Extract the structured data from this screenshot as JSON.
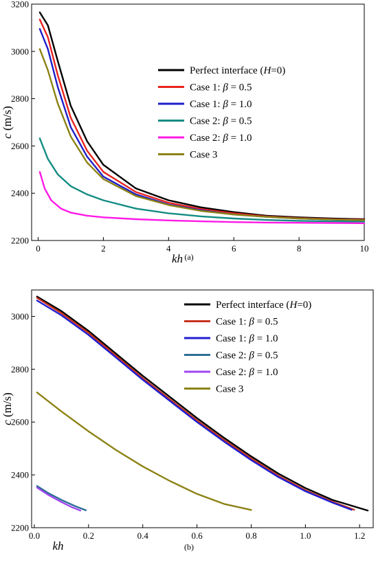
{
  "chart_data": [
    {
      "type": "line",
      "panel_label": "(a)",
      "xlabel": "kh",
      "ylabel": "c (m/s)",
      "xlim": [
        -0.2,
        10
      ],
      "ylim": [
        2200,
        3200
      ],
      "xticks": [
        "0",
        "2",
        "4",
        "6",
        "8",
        "10"
      ],
      "xtick_values": [
        0,
        2,
        4,
        6,
        8,
        10
      ],
      "yticks": [
        "2200",
        "2400",
        "2600",
        "2800",
        "3000",
        "3200"
      ],
      "ytick_values": [
        2200,
        2400,
        2600,
        2800,
        3000,
        3200
      ],
      "grid": false,
      "legend": "upper-right",
      "series": [
        {
          "name": "Perfect interface (H=0)",
          "label_main": "Perfect interface (",
          "label_var": "H",
          "label_end": "=0)",
          "color": "#000000",
          "x": [
            0.05,
            0.3,
            0.6,
            1.0,
            1.5,
            2.0,
            3.0,
            4.0,
            5.0,
            6.0,
            7.0,
            8.0,
            9.0,
            10.0
          ],
          "y": [
            3165,
            3110,
            2960,
            2770,
            2620,
            2520,
            2420,
            2370,
            2340,
            2320,
            2305,
            2298,
            2293,
            2290
          ]
        },
        {
          "name": "Case 1: β = 0.5",
          "label_main": "Case 1: ",
          "label_var": "β",
          "label_end": " = 0.5",
          "color": "#e8231e",
          "x": [
            0.05,
            0.3,
            0.6,
            1.0,
            1.5,
            2.0,
            3.0,
            4.0,
            5.0,
            6.0,
            7.0,
            8.0,
            9.0,
            10.0
          ],
          "y": [
            3135,
            3060,
            2900,
            2720,
            2580,
            2490,
            2405,
            2360,
            2333,
            2315,
            2302,
            2295,
            2290,
            2288
          ]
        },
        {
          "name": "Case 1: β = 1.0",
          "label_main": "Case 1: ",
          "label_var": "β",
          "label_end": " = 1.0",
          "color": "#1e1ec8",
          "x": [
            0.05,
            0.3,
            0.6,
            1.0,
            1.5,
            2.0,
            3.0,
            4.0,
            5.0,
            6.0,
            7.0,
            8.0,
            9.0,
            10.0
          ],
          "y": [
            3095,
            3010,
            2850,
            2680,
            2555,
            2470,
            2395,
            2352,
            2328,
            2310,
            2300,
            2293,
            2289,
            2286
          ]
        },
        {
          "name": "Case 2: β = 0.5",
          "label_main": "Case 2: ",
          "label_var": "β",
          "label_end": " = 0.5",
          "color": "#148c82",
          "x": [
            0.05,
            0.3,
            0.6,
            1.0,
            1.5,
            2.0,
            3.0,
            4.0,
            5.0,
            6.0,
            7.0,
            8.0,
            9.0,
            10.0
          ],
          "y": [
            2632,
            2545,
            2480,
            2430,
            2395,
            2370,
            2335,
            2315,
            2302,
            2293,
            2287,
            2283,
            2281,
            2280
          ]
        },
        {
          "name": "Case 2: β = 1.0",
          "label_main": "Case 2: ",
          "label_var": "β",
          "label_end": " = 1.0",
          "color": "#ff19e6",
          "x": [
            0.05,
            0.2,
            0.4,
            0.7,
            1.0,
            1.5,
            2.0,
            3.0,
            4.0,
            5.0,
            6.0,
            7.0,
            8.0,
            9.0,
            10.0
          ],
          "y": [
            2490,
            2420,
            2370,
            2335,
            2318,
            2305,
            2298,
            2290,
            2285,
            2281,
            2278,
            2276,
            2275,
            2274,
            2273
          ]
        },
        {
          "name": "Case 3",
          "label_main": "Case 3",
          "label_var": "",
          "label_end": "",
          "color": "#8c8214",
          "x": [
            0.05,
            0.3,
            0.6,
            1.0,
            1.5,
            2.0,
            3.0,
            4.0,
            5.0,
            6.0,
            7.0,
            8.0,
            9.0,
            10.0
          ],
          "y": [
            3010,
            2920,
            2780,
            2640,
            2530,
            2460,
            2388,
            2350,
            2325,
            2310,
            2300,
            2293,
            2289,
            2286
          ]
        }
      ]
    },
    {
      "type": "line",
      "panel_label": "(b)",
      "xlabel": "kh",
      "ylabel": "c (m/s)",
      "xlim": [
        -0.01,
        1.25
      ],
      "ylim": [
        2200,
        3100
      ],
      "xticks": [
        "0.0",
        "0.2",
        "0.4",
        "0.6",
        "0.8",
        "1.0",
        "1.2"
      ],
      "xtick_values": [
        0,
        0.2,
        0.4,
        0.6,
        0.8,
        1.0,
        1.2
      ],
      "yticks": [
        "2200",
        "2400",
        "2600",
        "2800",
        "3000"
      ],
      "ytick_values": [
        2200,
        2400,
        2600,
        2800,
        3000
      ],
      "grid": false,
      "legend": "upper-right",
      "series": [
        {
          "name": "Perfect interface (H=0)",
          "label_main": "Perfect interface (",
          "label_var": "H",
          "label_end": "=0)",
          "color": "#000000",
          "x": [
            0.01,
            0.1,
            0.2,
            0.3,
            0.4,
            0.5,
            0.6,
            0.7,
            0.8,
            0.9,
            1.0,
            1.1,
            1.23
          ],
          "y": [
            3075,
            3020,
            2945,
            2860,
            2775,
            2695,
            2615,
            2540,
            2470,
            2405,
            2350,
            2305,
            2265
          ]
        },
        {
          "name": "Case 1: β = 0.5",
          "label_main": "Case 1: ",
          "label_var": "β",
          "label_end": " = 0.5",
          "color": "#c8321e",
          "x": [
            0.01,
            0.1,
            0.2,
            0.3,
            0.4,
            0.5,
            0.6,
            0.7,
            0.8,
            0.9,
            1.0,
            1.1,
            1.18
          ],
          "y": [
            3070,
            3012,
            2938,
            2852,
            2766,
            2686,
            2606,
            2532,
            2462,
            2397,
            2342,
            2298,
            2268
          ]
        },
        {
          "name": "Case 1: β = 1.0",
          "label_main": "Case 1: ",
          "label_var": "β",
          "label_end": " = 1.0",
          "color": "#1e1ed2",
          "x": [
            0.01,
            0.1,
            0.2,
            0.3,
            0.4,
            0.5,
            0.6,
            0.7,
            0.8,
            0.9,
            1.0,
            1.1,
            1.17
          ],
          "y": [
            3060,
            3004,
            2930,
            2845,
            2760,
            2680,
            2600,
            2526,
            2456,
            2392,
            2338,
            2295,
            2268
          ]
        },
        {
          "name": "Case 2: β = 0.5",
          "label_main": "Case 2: ",
          "label_var": "β",
          "label_end": " = 0.5",
          "color": "#2d6e96",
          "x": [
            0.01,
            0.05,
            0.1,
            0.15,
            0.19
          ],
          "y": [
            2358,
            2332,
            2305,
            2282,
            2266
          ]
        },
        {
          "name": "Case 2: β = 1.0",
          "label_main": "Case 2: ",
          "label_var": "β",
          "label_end": " = 1.0",
          "color": "#a046f0",
          "x": [
            0.01,
            0.05,
            0.1,
            0.14,
            0.17
          ],
          "y": [
            2352,
            2325,
            2297,
            2277,
            2265
          ]
        },
        {
          "name": "Case 3",
          "label_main": "Case 3",
          "label_var": "",
          "label_end": "",
          "color": "#8c8214",
          "x": [
            0.01,
            0.1,
            0.2,
            0.3,
            0.4,
            0.5,
            0.6,
            0.7,
            0.8
          ],
          "y": [
            2712,
            2640,
            2565,
            2495,
            2432,
            2377,
            2328,
            2290,
            2267
          ]
        }
      ]
    }
  ]
}
